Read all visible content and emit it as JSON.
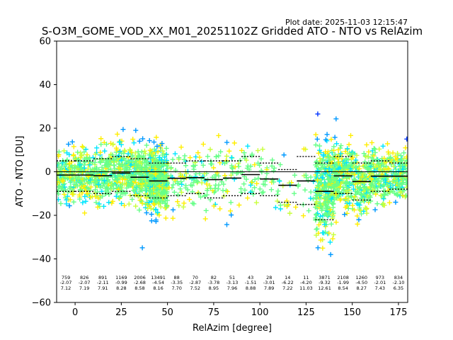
{
  "plot_date": "Plot date: 2025-11-03 12:15:47",
  "chart_data": {
    "type": "scatter",
    "title": "S-O3M_GOME_VOD_XX_M01_20251102Z Gridded ATO - NTO vs RelAzim",
    "xlabel": "RelAzim [degree]",
    "ylabel": "ATO - NTO [DU]",
    "xlim": [
      -10,
      180
    ],
    "ylim": [
      -60,
      60
    ],
    "xticks": [
      0,
      25,
      50,
      75,
      100,
      125,
      150,
      175
    ],
    "yticks": [
      -60,
      -40,
      -20,
      0,
      20,
      40,
      60
    ],
    "colors": [
      "#0033ff",
      "#0099ff",
      "#00e5ff",
      "#66ff88",
      "#c8ff3c",
      "#ffee00"
    ],
    "bins": [
      {
        "center": -5,
        "count": "759",
        "mean": "-2.07",
        "std": "7.12",
        "median": -1.5,
        "p_low": -9,
        "p_high": 5
      },
      {
        "center": 5,
        "count": "826",
        "mean": "-2.07",
        "std": "7.19",
        "median": -1.5,
        "p_low": -9,
        "p_high": 5
      },
      {
        "center": 15,
        "count": "891",
        "mean": "-2.11",
        "std": "7.91",
        "median": -1.8,
        "p_low": -10,
        "p_high": 6
      },
      {
        "center": 25,
        "count": "1169",
        "mean": "-0.99",
        "std": "8.28",
        "median": -0.6,
        "p_low": -9,
        "p_high": 7
      },
      {
        "center": 35,
        "count": "2006",
        "mean": "-2.68",
        "std": "8.58",
        "median": -2.5,
        "p_low": -11,
        "p_high": 6
      },
      {
        "center": 45,
        "count": "13491",
        "mean": "-4.54",
        "std": "8.16",
        "median": -4.2,
        "p_low": -12,
        "p_high": 4
      },
      {
        "center": 55,
        "count": "88",
        "mean": "-3.35",
        "std": "7.70",
        "median": -3,
        "p_low": -11,
        "p_high": 4
      },
      {
        "center": 65,
        "count": "70",
        "mean": "-2.87",
        "std": "7.52",
        "median": -2.7,
        "p_low": -10,
        "p_high": 5
      },
      {
        "center": 75,
        "count": "82",
        "mean": "-3.78",
        "std": "8.95",
        "median": -3.6,
        "p_low": -12,
        "p_high": 5
      },
      {
        "center": 85,
        "count": "51",
        "mean": "-3.13",
        "std": "7.96",
        "median": -2.9,
        "p_low": -11,
        "p_high": 5
      },
      {
        "center": 95,
        "count": "43",
        "mean": "-1.51",
        "std": "8.88",
        "median": -1.3,
        "p_low": -10,
        "p_high": 7
      },
      {
        "center": 105,
        "count": "28",
        "mean": "-3.01",
        "std": "7.89",
        "median": -3.3,
        "p_low": -11,
        "p_high": 4
      },
      {
        "center": 115,
        "count": "14",
        "mean": "-6.22",
        "std": "7.22",
        "median": -6.2,
        "p_low": -14,
        "p_high": 1
      },
      {
        "center": 125,
        "count": "11",
        "mean": "-4.20",
        "std": "11.03",
        "median": -4.2,
        "p_low": -15,
        "p_high": 7
      },
      {
        "center": 135,
        "count": "3871",
        "mean": "-9.32",
        "std": "12.61",
        "median": -9,
        "p_low": -22,
        "p_high": 4
      },
      {
        "center": 145,
        "count": "2108",
        "mean": "-1.99",
        "std": "8.54",
        "median": -1.9,
        "p_low": -10,
        "p_high": 7
      },
      {
        "center": 155,
        "count": "1260",
        "mean": "-4.50",
        "std": "8.27",
        "median": -4.5,
        "p_low": -13,
        "p_high": 4
      },
      {
        "center": 165,
        "count": "973",
        "mean": "-2.01",
        "std": "7.43",
        "median": -2,
        "p_low": -9,
        "p_high": 5
      },
      {
        "center": 175,
        "count": "834",
        "mean": "-2.10",
        "std": "6.35",
        "median": -2,
        "p_low": -8,
        "p_high": 4
      }
    ]
  }
}
